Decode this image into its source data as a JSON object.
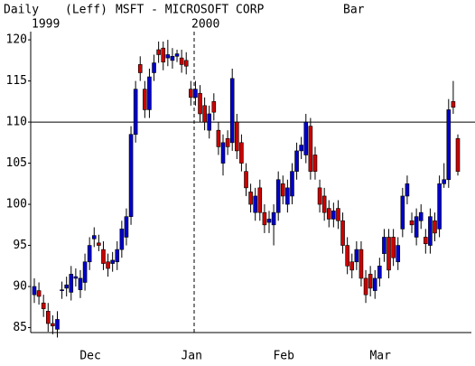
{
  "chart_data": {
    "type": "candlestick",
    "period": "Daily",
    "scale": "(Leff)",
    "title": "MSFT - MICROSOFT CORP",
    "style": "Bar",
    "year_labels": [
      "1999",
      "2000"
    ],
    "categories": [
      null,
      null,
      null,
      null,
      null,
      null,
      null,
      null,
      null,
      null,
      null,
      "Dec",
      null,
      null,
      null,
      null,
      null,
      null,
      null,
      null,
      null,
      null,
      null,
      null,
      null,
      null,
      null,
      null,
      null,
      null,
      null,
      null,
      null,
      "Jan",
      null,
      null,
      null,
      null,
      null,
      null,
      null,
      null,
      null,
      null,
      null,
      null,
      null,
      null,
      null,
      null,
      null,
      null,
      null,
      "Feb",
      null,
      null,
      null,
      null,
      null,
      null,
      null,
      null,
      null,
      null,
      null,
      null,
      null,
      null,
      null,
      null,
      null,
      null,
      null,
      null,
      "Mar",
      null,
      null,
      null,
      null,
      null,
      null,
      null,
      null,
      null,
      null,
      null,
      null,
      null,
      null,
      null,
      null,
      null,
      null
    ],
    "open": [
      89,
      89.5,
      88,
      87,
      85.5,
      84.8,
      89.5,
      89.8,
      89.3,
      91,
      89.6,
      90.5,
      93,
      95.8,
      95.3,
      94.5,
      93,
      92.8,
      93,
      94.5,
      96,
      98.5,
      108.5,
      117,
      114,
      111.5,
      116,
      118.8,
      119,
      117.8,
      117.5,
      118,
      117.8,
      117.5,
      114,
      113,
      113.5,
      112,
      109,
      112.5,
      109,
      105,
      108,
      107.5,
      110,
      107.5,
      104,
      101.5,
      99,
      102,
      99,
      97.8,
      97.5,
      99,
      102.5,
      100,
      101,
      104,
      106.5,
      106,
      109.5,
      106,
      102,
      101,
      99.5,
      98.2,
      99.5,
      98,
      95,
      93,
      93,
      94.5,
      91,
      91.5,
      89.5,
      91,
      94,
      96,
      96,
      93,
      97,
      101,
      98,
      96,
      98,
      96,
      95,
      98,
      97,
      102.5,
      103,
      112.5,
      108
    ],
    "high": [
      91,
      90.5,
      89,
      88,
      86.5,
      87,
      90.6,
      91.2,
      92.5,
      92.2,
      92,
      94,
      96,
      97.2,
      96.3,
      95.5,
      94,
      94.2,
      95.5,
      98,
      99.5,
      109.5,
      115,
      118,
      115,
      116.5,
      118.2,
      119.8,
      119.8,
      120,
      119,
      118.8,
      118.8,
      118.5,
      115,
      115,
      114.5,
      113,
      112,
      113.5,
      110,
      108.5,
      109,
      116.5,
      111,
      108.5,
      105,
      102.5,
      102,
      103,
      100,
      99.2,
      100,
      104,
      103.5,
      103,
      105,
      107.5,
      108.2,
      111,
      110.5,
      107,
      103,
      102,
      100.5,
      100.2,
      100.5,
      99,
      96,
      94,
      95.5,
      95.5,
      92,
      92.5,
      92,
      93.5,
      97,
      97,
      97,
      96,
      102,
      103.5,
      99,
      99.5,
      100,
      97,
      99.5,
      99,
      103.5,
      105,
      112.8,
      115,
      108.5
    ],
    "low": [
      88,
      87.8,
      86.3,
      84.5,
      84.2,
      83.8,
      88.5,
      88.8,
      88.3,
      90,
      88.6,
      89.5,
      92,
      94.8,
      94.3,
      92,
      91.2,
      91.8,
      92,
      93.5,
      95,
      97.5,
      107.5,
      115,
      110.5,
      110.5,
      115,
      117.2,
      116.3,
      116.8,
      116.5,
      117.3,
      116,
      115.8,
      112,
      112,
      110,
      109,
      108,
      110.2,
      106,
      103.5,
      106,
      106.5,
      105.5,
      104,
      101,
      99,
      98,
      98,
      96.5,
      96.5,
      95,
      98,
      100,
      99,
      100,
      103,
      105.5,
      105,
      103,
      103,
      99,
      98,
      97.2,
      97.2,
      97,
      94,
      91.5,
      91,
      92,
      90,
      88,
      88.8,
      88.5,
      90,
      93,
      91,
      92.5,
      92,
      96,
      100,
      96.5,
      95,
      97,
      94,
      94,
      95.5,
      96,
      102,
      102,
      111,
      103.5
    ],
    "close": [
      90,
      88.8,
      87.3,
      85.5,
      85.2,
      86,
      89.6,
      90.2,
      91.5,
      91.2,
      91,
      93,
      95,
      96.2,
      95,
      92.8,
      92.2,
      93.2,
      94.5,
      97,
      98.5,
      108.5,
      114,
      116,
      111.5,
      115.5,
      117.2,
      118.2,
      117.3,
      118.2,
      118,
      118.3,
      117,
      116.8,
      113,
      114,
      111,
      110,
      111,
      111.2,
      107,
      107.5,
      107,
      115.3,
      106.5,
      105,
      102,
      100,
      101,
      99,
      97.5,
      98.2,
      99,
      103,
      101,
      102,
      104,
      106.5,
      107.2,
      110,
      104,
      104,
      100,
      99,
      98.2,
      99.2,
      98,
      95,
      92.5,
      92,
      94.5,
      91,
      89,
      89.8,
      91,
      92.5,
      96,
      92,
      93.5,
      95,
      101,
      102.5,
      97.5,
      98.5,
      99,
      95.2,
      98.5,
      96.5,
      102.5,
      103,
      111.5,
      111.8,
      104
    ],
    "up_color": "#0000cc",
    "down_color": "#cc0000",
    "hline": 110,
    "ylim": [
      84.4,
      121
    ],
    "yticks": [
      85,
      90,
      95,
      100,
      105,
      110,
      115,
      120
    ]
  }
}
